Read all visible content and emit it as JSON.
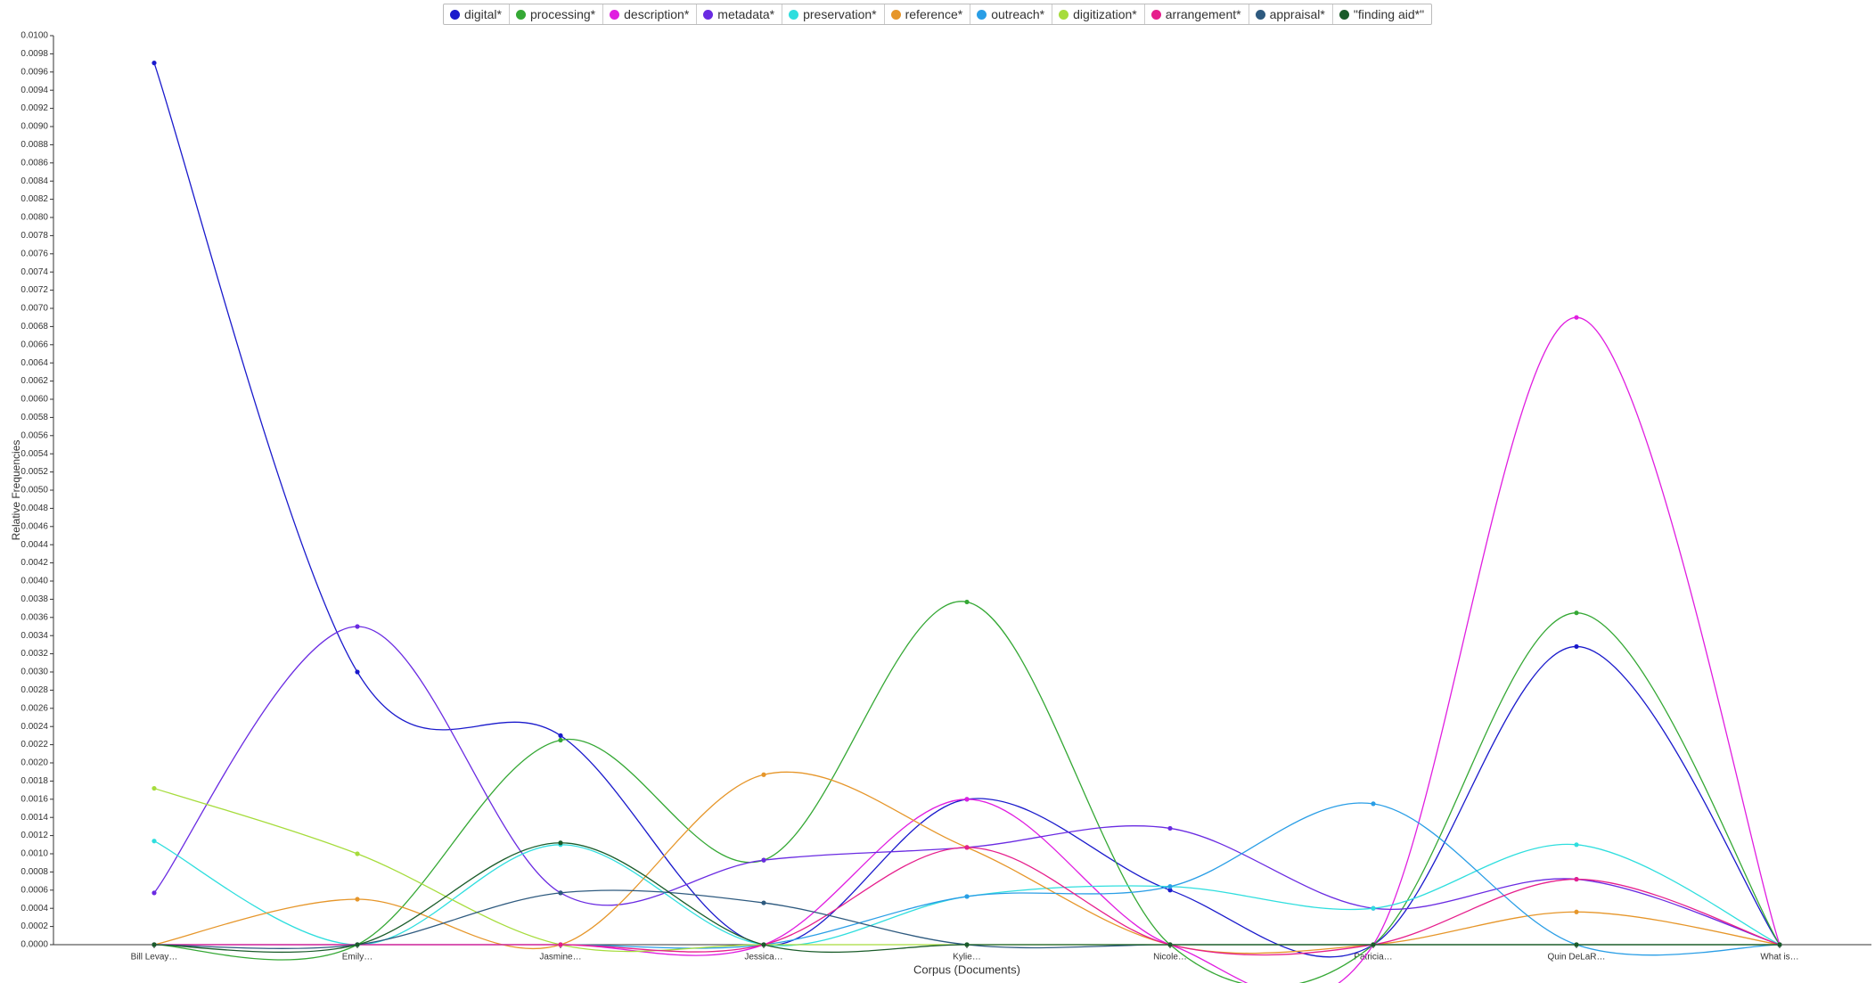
{
  "chart_data": {
    "type": "line",
    "x_label": "Corpus (Documents)",
    "y_label": "Relative Frequencies",
    "categories": [
      "Bill Levay…",
      "Emily…",
      "Jasmine…",
      "Jessica…",
      "Kylie…",
      "Nicole…",
      "Patricia…",
      "Quin DeLaR…",
      "What is…"
    ],
    "series": [
      {
        "name": "digital*",
        "color": "#1a1acc",
        "values": [
          0.0097,
          0.003,
          0.0023,
          0,
          0.0016,
          0.0006,
          0,
          0.00328,
          0
        ]
      },
      {
        "name": "processing*",
        "color": "#35a835",
        "values": [
          0,
          0,
          0.00225,
          0.00093,
          0.00377,
          0,
          0,
          0.00365,
          0
        ]
      },
      {
        "name": "description*",
        "color": "#e01ee0",
        "values": [
          0,
          0,
          0,
          0,
          0.0016,
          0,
          0,
          0.0069,
          0
        ]
      },
      {
        "name": "metadata*",
        "color": "#6a2be2",
        "values": [
          0.00057,
          0.0035,
          0.00057,
          0.00093,
          0.00107,
          0.00128,
          0.0004,
          0.00072,
          0
        ]
      },
      {
        "name": "preservation*",
        "color": "#2fdede",
        "values": [
          0.00114,
          0,
          0.0011,
          0,
          0.00053,
          0.00064,
          0.0004,
          0.0011,
          0
        ]
      },
      {
        "name": "reference*",
        "color": "#e6962a",
        "values": [
          0,
          0.0005,
          0,
          0.00187,
          0.00107,
          0,
          0,
          0.00036,
          0
        ]
      },
      {
        "name": "outreach*",
        "color": "#2a9ee6",
        "values": [
          0,
          0,
          0,
          0,
          0.00053,
          0.00064,
          0.00155,
          0,
          0
        ]
      },
      {
        "name": "digitization*",
        "color": "#a6dc3c",
        "values": [
          0.00172,
          0.001,
          0,
          0,
          0,
          0,
          0,
          0,
          0
        ]
      },
      {
        "name": "arrangement*",
        "color": "#e61e8c",
        "values": [
          0,
          0,
          0,
          0,
          0.00107,
          0,
          0,
          0.00072,
          0
        ]
      },
      {
        "name": "appraisal*",
        "color": "#2e5a7f",
        "values": [
          0,
          0,
          0.00057,
          0.00046,
          0,
          0,
          0,
          0,
          0
        ]
      },
      {
        "name": "\"finding aid*\"",
        "color": "#1a5c2a",
        "values": [
          0,
          0,
          0.00112,
          0,
          0,
          0,
          0,
          0,
          0
        ]
      }
    ],
    "ylim": [
      0,
      0.01
    ],
    "yticks": [
      {
        "value": 0,
        "label": "0.0000"
      },
      {
        "value": 0.0002,
        "label": "0.0002"
      },
      {
        "value": 0.0004,
        "label": "0.0004"
      },
      {
        "value": 0.0006,
        "label": "0.0006"
      },
      {
        "value": 0.0008,
        "label": "0.0008"
      },
      {
        "value": 0.001,
        "label": "0.0010"
      },
      {
        "value": 0.0012,
        "label": "0.0012"
      },
      {
        "value": 0.0014,
        "label": "0.0014"
      },
      {
        "value": 0.0016,
        "label": "0.0016"
      },
      {
        "value": 0.0018,
        "label": "0.0018"
      },
      {
        "value": 0.002,
        "label": "0.0020"
      },
      {
        "value": 0.0022,
        "label": "0.0022"
      },
      {
        "value": 0.0024,
        "label": "0.0024"
      },
      {
        "value": 0.0026,
        "label": "0.0026"
      },
      {
        "value": 0.0028,
        "label": "0.0028"
      },
      {
        "value": 0.003,
        "label": "0.0030"
      },
      {
        "value": 0.0032,
        "label": "0.0032"
      },
      {
        "value": 0.0034,
        "label": "0.0034"
      },
      {
        "value": 0.0036,
        "label": "0.0036"
      },
      {
        "value": 0.0038,
        "label": "0.0038"
      },
      {
        "value": 0.004,
        "label": "0.0040"
      },
      {
        "value": 0.0042,
        "label": "0.0042"
      },
      {
        "value": 0.0044,
        "label": "0.0044"
      },
      {
        "value": 0.0046,
        "label": "0.0046"
      },
      {
        "value": 0.0048,
        "label": "0.0048"
      },
      {
        "value": 0.005,
        "label": "0.0050"
      },
      {
        "value": 0.0052,
        "label": "0.0052"
      },
      {
        "value": 0.0054,
        "label": "0.0054"
      },
      {
        "value": 0.0056,
        "label": "0.0056"
      },
      {
        "value": 0.0058,
        "label": "0.0058"
      },
      {
        "value": 0.006,
        "label": "0.0060"
      },
      {
        "value": 0.0062,
        "label": "0.0062"
      },
      {
        "value": 0.0064,
        "label": "0.0064"
      },
      {
        "value": 0.0066,
        "label": "0.0066"
      },
      {
        "value": 0.0068,
        "label": "0.0068"
      },
      {
        "value": 0.007,
        "label": "0.0070"
      },
      {
        "value": 0.0072,
        "label": "0.0072"
      },
      {
        "value": 0.0074,
        "label": "0.0074"
      },
      {
        "value": 0.0076,
        "label": "0.0076"
      },
      {
        "value": 0.0078,
        "label": "0.0078"
      },
      {
        "value": 0.008,
        "label": "0.0080"
      },
      {
        "value": 0.0082,
        "label": "0.0082"
      },
      {
        "value": 0.0084,
        "label": "0.0084"
      },
      {
        "value": 0.0086,
        "label": "0.0086"
      },
      {
        "value": 0.0088,
        "label": "0.0088"
      },
      {
        "value": 0.009,
        "label": "0.0090"
      },
      {
        "value": 0.0092,
        "label": "0.0092"
      },
      {
        "value": 0.0094,
        "label": "0.0094"
      },
      {
        "value": 0.0096,
        "label": "0.0096"
      },
      {
        "value": 0.0098,
        "label": "0.0098"
      },
      {
        "value": 0.01,
        "label": "0.0100"
      }
    ],
    "grid": false
  }
}
